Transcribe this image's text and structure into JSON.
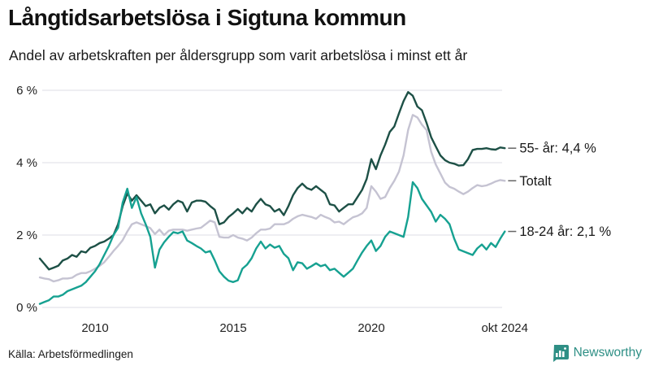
{
  "header": {
    "title": "Långtidsarbetslösa i Sigtuna kommun",
    "subtitle": "Andel av arbetskraften per åldersgrupp som varit arbetslösa i minst ett år"
  },
  "footer": {
    "source": "Källa: Arbetsförmedlingen",
    "brand": "Newsworthy"
  },
  "colors": {
    "series_55": "#1d5046",
    "series_totalt": "#c5c3d2",
    "series_1824": "#16a191",
    "grid": "#e4e3ea",
    "axis_text": "#222222",
    "label_text": "#1a1a1a",
    "end_tick": "#666666",
    "brand_teal": "#2e8f85",
    "background": "#ffffff"
  },
  "chart_data": {
    "type": "line",
    "title": "Långtidsarbetslösa i Sigtuna kommun",
    "subtitle": "Andel av arbetskraften per åldersgrupp som varit arbetslösa i minst ett år",
    "unit": "%",
    "grid": true,
    "legend_position": "right-of-line-ends",
    "x_start_year": 2008,
    "points_per_year": 6,
    "x_end_label_year": 2024.83,
    "xlim": [
      2008,
      2025.1
    ],
    "ylim": [
      0,
      6.3
    ],
    "x_ticks": [
      {
        "label": "2010",
        "year": 2010
      },
      {
        "label": "2015",
        "year": 2015
      },
      {
        "label": "2020",
        "year": 2020
      },
      {
        "label": "okt 2024",
        "year": 2024.83
      }
    ],
    "y_ticks": [
      {
        "label": "0 %",
        "value": 0
      },
      {
        "label": "2 %",
        "value": 2
      },
      {
        "label": "4 %",
        "value": 4
      },
      {
        "label": "6 %",
        "value": 6
      }
    ],
    "series": [
      {
        "name": "Totalt",
        "end_label": "Totalt",
        "end_value": 3.5,
        "color": "#c5c3d2",
        "values": [
          0.83,
          0.8,
          0.78,
          0.72,
          0.75,
          0.8,
          0.8,
          0.82,
          0.9,
          0.95,
          0.95,
          1.0,
          1.07,
          1.15,
          1.25,
          1.4,
          1.56,
          1.7,
          1.86,
          2.1,
          2.3,
          2.35,
          2.3,
          2.25,
          2.19,
          2.03,
          2.15,
          2.0,
          2.12,
          2.15,
          2.15,
          2.15,
          2.12,
          2.15,
          2.18,
          2.2,
          2.3,
          2.4,
          2.35,
          1.95,
          1.93,
          1.93,
          2.0,
          1.93,
          1.9,
          1.85,
          1.93,
          2.05,
          2.15,
          2.15,
          2.18,
          2.3,
          2.3,
          2.3,
          2.35,
          2.45,
          2.52,
          2.56,
          2.53,
          2.5,
          2.45,
          2.56,
          2.5,
          2.45,
          2.35,
          2.37,
          2.3,
          2.4,
          2.49,
          2.53,
          2.6,
          2.75,
          3.35,
          3.2,
          3.0,
          3.05,
          3.3,
          3.5,
          3.75,
          4.2,
          4.9,
          5.32,
          5.25,
          5.05,
          4.9,
          4.3,
          3.95,
          3.7,
          3.45,
          3.33,
          3.28,
          3.2,
          3.13,
          3.2,
          3.3,
          3.38,
          3.35,
          3.37,
          3.42,
          3.48,
          3.52,
          3.5
        ]
      },
      {
        "name": "55- år",
        "end_label": "55- år: 4,4 %",
        "end_value": 4.4,
        "color": "#1d5046",
        "values": [
          1.35,
          1.2,
          1.05,
          1.1,
          1.15,
          1.3,
          1.35,
          1.45,
          1.4,
          1.55,
          1.52,
          1.65,
          1.7,
          1.78,
          1.82,
          1.9,
          2.0,
          2.3,
          2.8,
          3.15,
          2.95,
          3.1,
          2.95,
          2.8,
          2.85,
          2.6,
          2.75,
          2.82,
          2.7,
          2.85,
          2.95,
          2.9,
          2.65,
          2.9,
          2.95,
          2.95,
          2.92,
          2.8,
          2.7,
          2.3,
          2.35,
          2.5,
          2.6,
          2.72,
          2.6,
          2.75,
          2.65,
          2.85,
          3.0,
          2.85,
          2.8,
          2.65,
          2.72,
          2.55,
          2.8,
          3.1,
          3.3,
          3.42,
          3.3,
          3.25,
          3.35,
          3.25,
          3.15,
          2.85,
          2.82,
          2.65,
          2.75,
          2.85,
          2.85,
          3.05,
          3.25,
          3.55,
          4.1,
          3.82,
          4.2,
          4.5,
          4.85,
          5.0,
          5.36,
          5.7,
          5.95,
          5.85,
          5.55,
          5.45,
          5.1,
          4.7,
          4.45,
          4.2,
          4.07,
          4.0,
          3.97,
          3.92,
          3.93,
          4.1,
          4.35,
          4.38,
          4.38,
          4.4,
          4.37,
          4.36,
          4.42,
          4.4
        ]
      },
      {
        "name": "18-24 år",
        "end_label": "18-24 år: 2,1 %",
        "end_value": 2.1,
        "color": "#16a191",
        "values": [
          0.1,
          0.15,
          0.2,
          0.3,
          0.3,
          0.35,
          0.45,
          0.5,
          0.55,
          0.6,
          0.7,
          0.85,
          1.0,
          1.2,
          1.45,
          1.7,
          2.0,
          2.2,
          2.9,
          3.28,
          2.75,
          3.05,
          2.6,
          2.3,
          1.95,
          1.1,
          1.6,
          1.8,
          1.95,
          2.08,
          2.05,
          2.1,
          1.85,
          1.78,
          1.7,
          1.63,
          1.52,
          1.56,
          1.3,
          1.0,
          0.85,
          0.74,
          0.7,
          0.75,
          1.07,
          1.18,
          1.36,
          1.63,
          1.82,
          1.63,
          1.74,
          1.65,
          1.7,
          1.48,
          1.36,
          1.03,
          1.25,
          1.22,
          1.07,
          1.14,
          1.22,
          1.14,
          1.18,
          1.03,
          1.07,
          0.96,
          0.85,
          0.96,
          1.07,
          1.3,
          1.52,
          1.7,
          1.85,
          1.56,
          1.7,
          1.95,
          2.1,
          2.05,
          2.0,
          1.95,
          2.5,
          3.46,
          3.3,
          3.0,
          2.82,
          2.64,
          2.37,
          2.56,
          2.45,
          2.3,
          1.9,
          1.6,
          1.55,
          1.5,
          1.45,
          1.63,
          1.74,
          1.6,
          1.78,
          1.67,
          1.9,
          2.1
        ]
      }
    ]
  }
}
